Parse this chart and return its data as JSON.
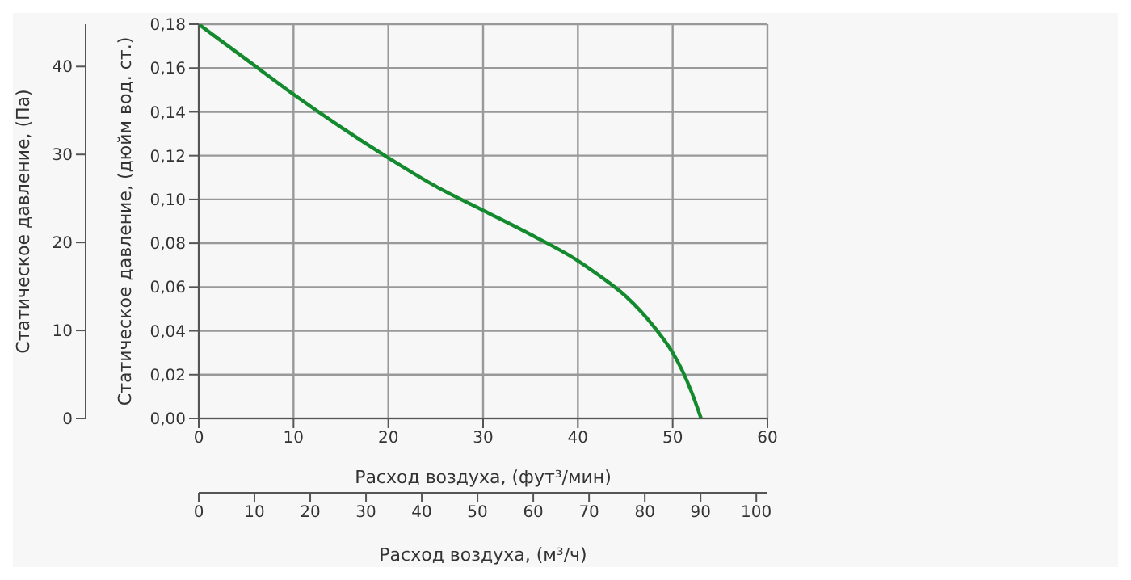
{
  "chart_data": {
    "type": "line",
    "xlabel": "Расход воздуха, (фут³/мин)",
    "ylabel": "Статическое давление, (дюйм вод. ст.)",
    "y2label": "Статическое давление, (Па)",
    "x2label": "Расход воздуха, (м³/ч)",
    "x": [
      0,
      5,
      10,
      15,
      20,
      25,
      30,
      35,
      40,
      42,
      45,
      48,
      50,
      51,
      52,
      53
    ],
    "series": [
      {
        "color": "#138a2e",
        "values": [
          0.18,
          0.164,
          0.148,
          0.133,
          0.119,
          0.106,
          0.095,
          0.084,
          0.072,
          0.066,
          0.056,
          0.042,
          0.03,
          0.022,
          0.012,
          0.0
        ]
      }
    ],
    "xlim": [
      0,
      60
    ],
    "xticks": [
      0,
      10,
      20,
      30,
      40,
      50,
      60
    ],
    "ylim": [
      0,
      0.18
    ],
    "yticks": [
      {
        "value": 0,
        "label": "0,00"
      },
      {
        "value": 0.02,
        "label": "0,02"
      },
      {
        "value": 0.04,
        "label": "0,04"
      },
      {
        "value": 0.06,
        "label": "0,06"
      },
      {
        "value": 0.08,
        "label": "0,08"
      },
      {
        "value": 0.1,
        "label": "0,10"
      },
      {
        "value": 0.12,
        "label": "0,12"
      },
      {
        "value": 0.14,
        "label": "0,14"
      },
      {
        "value": 0.16,
        "label": "0,16"
      },
      {
        "value": 0.18,
        "label": "0,18"
      }
    ],
    "y2lim": [
      0,
      44.8
    ],
    "y2ticks": [
      0,
      10,
      20,
      30,
      40
    ],
    "x2lim": [
      0,
      102
    ],
    "x2ticks": [
      0,
      10,
      20,
      30,
      40,
      50,
      60,
      70,
      80,
      90,
      100
    ],
    "grid": true,
    "legend": false,
    "marker": "none",
    "line_style": "solid"
  }
}
